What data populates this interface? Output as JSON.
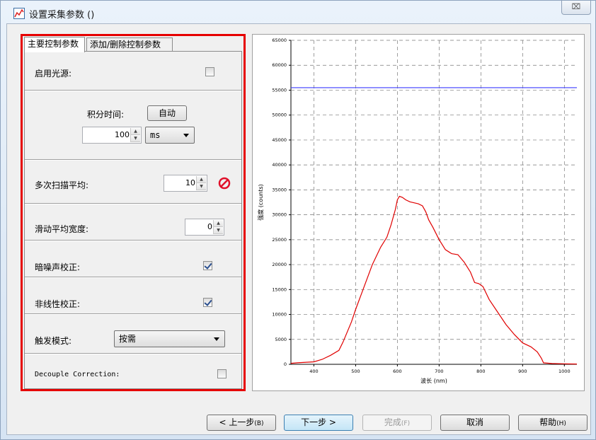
{
  "window": {
    "title": "设置采集参数 ()",
    "close_glyph": "⌧"
  },
  "tabs": [
    {
      "label": "主要控制参数",
      "active": true
    },
    {
      "label": "添加/删除控制参数",
      "active": false
    }
  ],
  "settings": {
    "light_source": {
      "label": "启用光源:",
      "checked": false
    },
    "integration": {
      "label": "积分时间:",
      "auto_button": "自动",
      "value": "100",
      "unit": "ms"
    },
    "scans_to_average": {
      "label": "多次扫描平均:",
      "value": "10"
    },
    "boxcar_width": {
      "label": "滑动平均宽度:",
      "value": "0"
    },
    "dark_correction": {
      "label": "暗噪声校正:",
      "checked": true
    },
    "nonlinearity": {
      "label": "非线性校正:",
      "checked": true
    },
    "trigger_mode": {
      "label": "触发模式:",
      "value": "按需"
    },
    "decouple": {
      "label": "Decouple Correction:",
      "checked": false
    }
  },
  "chart_data": {
    "type": "line",
    "xlabel": "波长 (nm)",
    "ylabel": "强度 (counts)",
    "xlim": [
      345,
      1030
    ],
    "ylim": [
      0,
      65000
    ],
    "x_ticks": [
      400,
      500,
      600,
      700,
      800,
      900,
      1000
    ],
    "y_ticks": [
      0,
      5000,
      10000,
      15000,
      20000,
      25000,
      30000,
      35000,
      40000,
      45000,
      50000,
      55000,
      60000,
      65000
    ],
    "grid": true,
    "saturation_line": {
      "y": 55500,
      "color": "#3b3bff"
    },
    "series": [
      {
        "color": "#e00000",
        "x": [
          345,
          360,
          400,
          420,
          440,
          460,
          470,
          480,
          490,
          500,
          520,
          540,
          560,
          575,
          585,
          595,
          600,
          605,
          612,
          620,
          630,
          640,
          650,
          660,
          668,
          675,
          685,
          700,
          715,
          730,
          745,
          760,
          775,
          785,
          795,
          805,
          820,
          840,
          860,
          880,
          900,
          920,
          935,
          945,
          950,
          970,
          1000,
          1030
        ],
        "y": [
          200,
          300,
          500,
          1000,
          1800,
          2800,
          4500,
          6500,
          8500,
          11000,
          15500,
          20000,
          23500,
          25500,
          28000,
          31000,
          33000,
          33700,
          33500,
          33000,
          32600,
          32400,
          32200,
          31800,
          30600,
          29000,
          27500,
          25000,
          23000,
          22200,
          22000,
          20500,
          18500,
          16400,
          16200,
          15600,
          13000,
          10500,
          8000,
          6000,
          4300,
          3500,
          2500,
          1200,
          300,
          150,
          100,
          50
        ]
      }
    ]
  },
  "footer": {
    "back": "< 上一步",
    "back_key": "(B)",
    "next": "下一步 >",
    "finish": "完成",
    "finish_key": "(F)",
    "cancel": "取消",
    "help": "帮助",
    "help_key": "(H)"
  }
}
